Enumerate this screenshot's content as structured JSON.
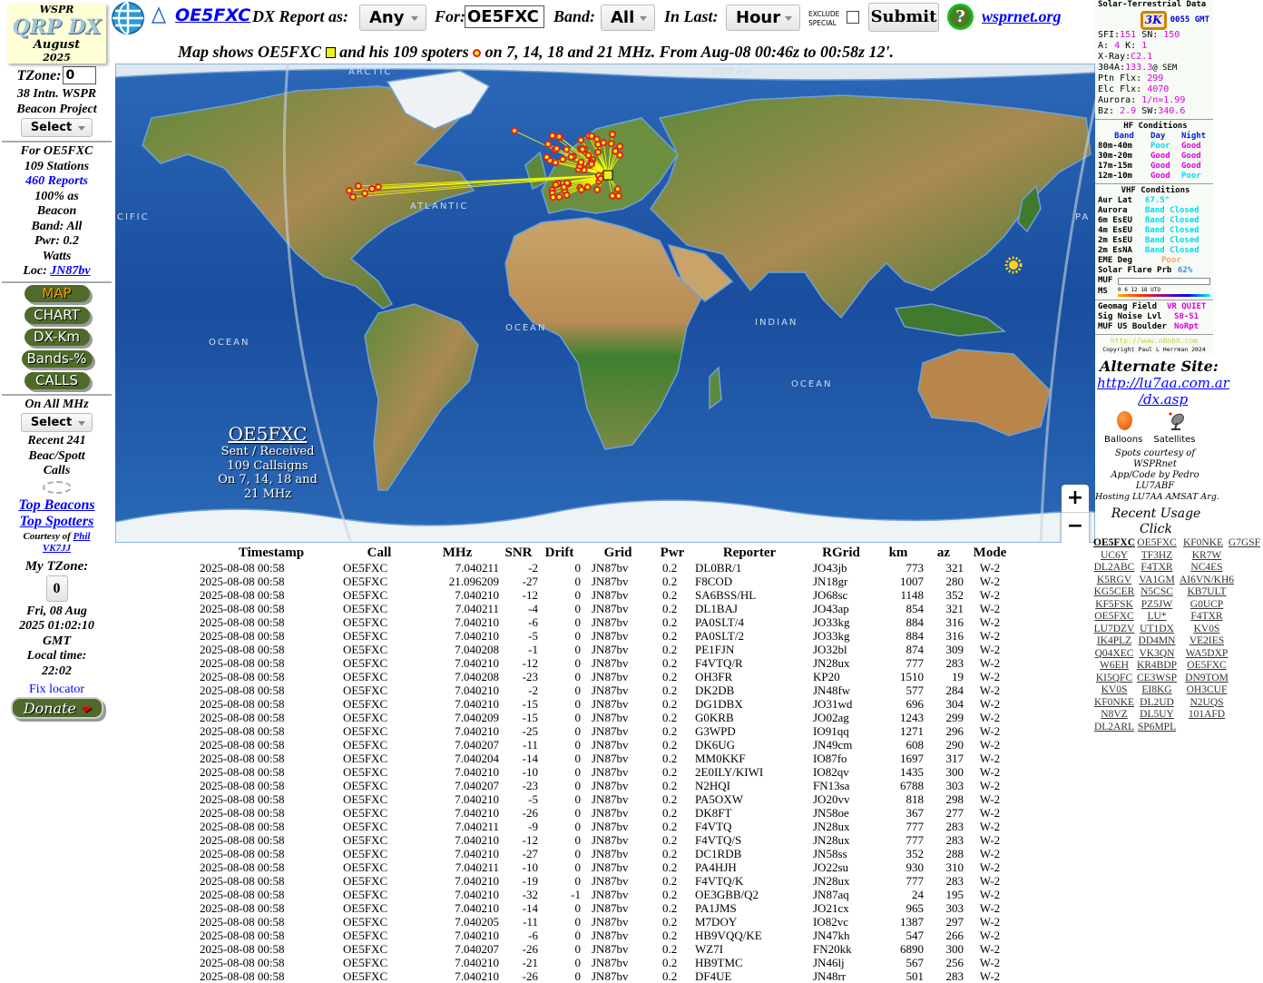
{
  "logo": {
    "top": "WSPR",
    "title": "QRP DX",
    "month": "August",
    "year": "2025"
  },
  "header": {
    "callsign_link": "OE5FXC",
    "report_as_label": "DX Report as:",
    "report_as_value": "Any",
    "for_label": "For:",
    "for_value": "OE5FXC",
    "band_label": "Band:",
    "band_value": "All",
    "in_last_label": "In Last:",
    "in_last_value": "Hour",
    "exclude_label_1": "EXCLUDE",
    "exclude_label_2": "SPECIAL",
    "exclude_checked": false,
    "submit_label": "Submit",
    "help_label": "?",
    "wsprnet_link": "wsprnet.org",
    "subtitle": "Map shows OE5FXC",
    "subtitle_2": "and his 109 spoters",
    "subtitle_3": "on 7, 14, 18 and 21 MHz. From Aug-08 00:46z to 00:58z 12'."
  },
  "sidebar": {
    "tzone_label": "TZone:",
    "tzone_value": "0",
    "project_1": "38 Intn. WSPR",
    "project_2": "Beacon Project",
    "select_label": "Select",
    "stats": {
      "for": "For OE5FXC",
      "stations": "109 Stations",
      "reports": "460 Reports",
      "beacon_1": "100% as",
      "beacon_2": "Beacon",
      "band": "Band: All",
      "pwr": "Pwr: 0.2",
      "watts": "Watts",
      "loc_label": "Loc:",
      "loc_value": "JN87bv"
    },
    "buttons": [
      "MAP",
      "CHART",
      "DX-Km",
      "Bands-%",
      "CALLS"
    ],
    "all_mhz": "On All MHz",
    "select2_label": "Select",
    "recent_1": "Recent 241",
    "recent_2": "Beac/Spott",
    "recent_3": "Calls",
    "top_beacons": "Top Beacons",
    "top_spotters": "Top Spotters",
    "courtesy": "Courtesy of",
    "phil": "Phil",
    "vk7jj": "VK7JJ",
    "my_tzone": "My TZone:",
    "my_tzone_value": "0",
    "date_1": "Fri, 08 Aug",
    "date_2": "2025 01:02:10",
    "date_3": "GMT",
    "local_label": "Local time:",
    "local_time": "22:02",
    "fix_locator": "Fix locator",
    "donate": "Donate"
  },
  "map": {
    "labels": [
      "ARCTIC",
      "OCEAN",
      "ATLANTIC",
      "OCEAN",
      "OCEAN",
      "INDIAN",
      "OCEAN",
      "CIFIC",
      "PA"
    ],
    "overlay": {
      "call": "OE5FXC",
      "line1": "Sent / Received",
      "line2": "109 Callsigns",
      "line3": "On 7, 14, 18 and",
      "line4": "21 MHz"
    },
    "zoom_in": "+",
    "zoom_out": "−",
    "colors": {
      "ocean": "#1d4fa0",
      "spot": "#e02020",
      "path": "#ffff00"
    }
  },
  "solar": {
    "title": "Solar-Terrestrial Data",
    "badge": "3K",
    "time": "0055 GMT",
    "sfi_label": "SFI:",
    "sfi": "151",
    "sn_label": "SN:",
    "sn": "150",
    "a_label": "A:",
    "a": "4",
    "k_label": "K:",
    "k": "1",
    "xray_label": "X-Ray:",
    "xray": "C2.1",
    "a304_label": "304A:",
    "a304": "133.3",
    "a304_suffix": "@ SEM",
    "ptn_label": "Ptn Flx:",
    "ptn": "299",
    "elc_label": "Elc Flx:",
    "elc": "4070",
    "aurora_label": "Aurora:",
    "aurora": "1/n=1.99",
    "bz_label": "Bz:",
    "bz": "2.9",
    "sw_label": "SW:",
    "sw": "340.6",
    "hf_title": "HF Conditions",
    "hf_head": [
      "Band",
      "Day",
      "Night"
    ],
    "hf": [
      [
        "80m-40m",
        "Poor",
        "Good"
      ],
      [
        "30m-20m",
        "Good",
        "Good"
      ],
      [
        "17m-15m",
        "Good",
        "Good"
      ],
      [
        "12m-10m",
        "Good",
        "Poor"
      ]
    ],
    "vhf_title": "VHF Conditions",
    "aur_lat_label": "Aur Lat",
    "aur_lat": "67.5°",
    "vhf": [
      [
        "Aurora",
        "Band Closed"
      ],
      [
        "6m EsEU",
        "Band Closed"
      ],
      [
        "4m EsEU",
        "Band Closed"
      ],
      [
        "2m EsEU",
        "Band Closed"
      ],
      [
        "2m EsNA",
        "Band Closed"
      ]
    ],
    "eme_label": "EME Deg",
    "eme": "Poor",
    "flare_label": "Solar Flare Prb",
    "flare": "62%",
    "muf_label": "MUF",
    "ms_label": "MS",
    "scale": "0  6  12  18 UTO",
    "geomag_label": "Geomag Field",
    "geomag": "VR QUIET",
    "noise_label": "Sig Noise Lvl",
    "noise": "S0-S1",
    "boulder_label": "MUF US Boulder",
    "boulder": "NoRpt",
    "url": "http://www.n0nbh.com",
    "copyright": "Copyright Paul L Herrman 2024"
  },
  "right": {
    "alt_title": "Alternate Site:",
    "alt_link_1": "http://lu7aa.com.ar",
    "alt_link_2": "/dx.asp",
    "balloons": "Balloons",
    "satellites": "Satellites",
    "credit_1": "Spots courtesy of",
    "credit_2": "WSPRnet",
    "credit_3": "App/Code by Pedro",
    "credit_4": "LU7ABF",
    "credit_5": "Hosting LU7AA AMSAT Arg.",
    "recent_1": "Recent Usage",
    "recent_2": "Click",
    "usage": [
      "OE5FXC",
      "OE5FXC",
      "KF0NKE",
      "G7GSF",
      "UC6Y",
      "TF3HZ",
      "KR7W",
      "DL2ABC",
      "F4TXR",
      "NC4ES",
      "K5RGV",
      "VA1GM",
      "AI6VN/KH6",
      "KG5CER",
      "N5CSC",
      "KB7ULT",
      "KF5FSK",
      "PZ5JW",
      "G0UCP",
      "OE5FXC",
      "LU*",
      "F4TXR",
      "LU7DZV",
      "UT1DX",
      "KV0S",
      "IK4PLZ",
      "DD4MN",
      "VE2IES",
      "Q04XEC",
      "VK3QN",
      "WA5DXP",
      "W6EH",
      "KR4BDP",
      "OE5FXC",
      "KI5QFC",
      "CE3WSP",
      "DN9TOM",
      "KV0S",
      "EI8KG",
      "OH3CUF",
      "KF0NKE",
      "DL2UD",
      "N2UQS",
      "N8VZ",
      "DL5UY",
      "101AFD",
      "DL2ARL",
      "SP6MPL"
    ]
  },
  "table": {
    "headers": [
      "Timestamp",
      "Call",
      "MHz",
      "SNR",
      "Drift",
      "Grid",
      "Pwr",
      "Reporter",
      "RGrid",
      "km",
      "az",
      "Mode"
    ],
    "rows": [
      [
        "2025-08-08 00:58",
        "OE5FXC",
        "7.040211",
        "-2",
        "0",
        "JN87bv",
        "0.2",
        "DL0BR/1",
        "JO43jb",
        "773",
        "321",
        "W-2"
      ],
      [
        "2025-08-08 00:58",
        "OE5FXC",
        "21.096209",
        "-27",
        "0",
        "JN87bv",
        "0.2",
        "F8COD",
        "JN18gr",
        "1007",
        "280",
        "W-2"
      ],
      [
        "2025-08-08 00:58",
        "OE5FXC",
        "7.040210",
        "-12",
        "0",
        "JN87bv",
        "0.2",
        "SA6BSS/HL",
        "JO68sc",
        "1148",
        "352",
        "W-2"
      ],
      [
        "2025-08-08 00:58",
        "OE5FXC",
        "7.040211",
        "-4",
        "0",
        "JN87bv",
        "0.2",
        "DL1BAJ",
        "JO43ap",
        "854",
        "321",
        "W-2"
      ],
      [
        "2025-08-08 00:58",
        "OE5FXC",
        "7.040210",
        "-6",
        "0",
        "JN87bv",
        "0.2",
        "PA0SLT/4",
        "JO33kg",
        "884",
        "316",
        "W-2"
      ],
      [
        "2025-08-08 00:58",
        "OE5FXC",
        "7.040210",
        "-5",
        "0",
        "JN87bv",
        "0.2",
        "PA0SLT/2",
        "JO33kg",
        "884",
        "316",
        "W-2"
      ],
      [
        "2025-08-08 00:58",
        "OE5FXC",
        "7.040208",
        "-1",
        "0",
        "JN87bv",
        "0.2",
        "PE1FJN",
        "JO32bl",
        "874",
        "309",
        "W-2"
      ],
      [
        "2025-08-08 00:58",
        "OE5FXC",
        "7.040210",
        "-12",
        "0",
        "JN87bv",
        "0.2",
        "F4VTQ/R",
        "JN28ux",
        "777",
        "283",
        "W-2"
      ],
      [
        "2025-08-08 00:58",
        "OE5FXC",
        "7.040208",
        "-23",
        "0",
        "JN87bv",
        "0.2",
        "OH3FR",
        "KP20",
        "1510",
        "19",
        "W-2"
      ],
      [
        "2025-08-08 00:58",
        "OE5FXC",
        "7.040210",
        "-2",
        "0",
        "JN87bv",
        "0.2",
        "DK2DB",
        "JN48fw",
        "577",
        "284",
        "W-2"
      ],
      [
        "2025-08-08 00:58",
        "OE5FXC",
        "7.040210",
        "-15",
        "0",
        "JN87bv",
        "0.2",
        "DG1DBX",
        "JO31wd",
        "696",
        "304",
        "W-2"
      ],
      [
        "2025-08-08 00:58",
        "OE5FXC",
        "7.040209",
        "-15",
        "0",
        "JN87bv",
        "0.2",
        "G0KRB",
        "JO02ag",
        "1243",
        "299",
        "W-2"
      ],
      [
        "2025-08-08 00:58",
        "OE5FXC",
        "7.040210",
        "-25",
        "0",
        "JN87bv",
        "0.2",
        "G3WPD",
        "IO91qq",
        "1271",
        "296",
        "W-2"
      ],
      [
        "2025-08-08 00:58",
        "OE5FXC",
        "7.040207",
        "-11",
        "0",
        "JN87bv",
        "0.2",
        "DK6UG",
        "JN49cm",
        "608",
        "290",
        "W-2"
      ],
      [
        "2025-08-08 00:58",
        "OE5FXC",
        "7.040204",
        "-14",
        "0",
        "JN87bv",
        "0.2",
        "MM0KKF",
        "IO87fo",
        "1697",
        "317",
        "W-2"
      ],
      [
        "2025-08-08 00:58",
        "OE5FXC",
        "7.040210",
        "-10",
        "0",
        "JN87bv",
        "0.2",
        "2E0ILY/KIWI",
        "IO82qv",
        "1435",
        "300",
        "W-2"
      ],
      [
        "2025-08-08 00:58",
        "OE5FXC",
        "7.040207",
        "-23",
        "0",
        "JN87bv",
        "0.2",
        "N2HQI",
        "FN13sa",
        "6788",
        "303",
        "W-2"
      ],
      [
        "2025-08-08 00:58",
        "OE5FXC",
        "7.040210",
        "-5",
        "0",
        "JN87bv",
        "0.2",
        "PA5OXW",
        "JO20vv",
        "818",
        "298",
        "W-2"
      ],
      [
        "2025-08-08 00:58",
        "OE5FXC",
        "7.040210",
        "-26",
        "0",
        "JN87bv",
        "0.2",
        "DK8FT",
        "JN58oe",
        "367",
        "277",
        "W-2"
      ],
      [
        "2025-08-08 00:58",
        "OE5FXC",
        "7.040211",
        "-9",
        "0",
        "JN87bv",
        "0.2",
        "F4VTQ",
        "JN28ux",
        "777",
        "283",
        "W-2"
      ],
      [
        "2025-08-08 00:58",
        "OE5FXC",
        "7.040210",
        "-12",
        "0",
        "JN87bv",
        "0.2",
        "F4VTQ/S",
        "JN28ux",
        "777",
        "283",
        "W-2"
      ],
      [
        "2025-08-08 00:58",
        "OE5FXC",
        "7.040210",
        "-27",
        "0",
        "JN87bv",
        "0.2",
        "DC1RDB",
        "JN58ss",
        "352",
        "288",
        "W-2"
      ],
      [
        "2025-08-08 00:58",
        "OE5FXC",
        "7.040211",
        "-10",
        "0",
        "JN87bv",
        "0.2",
        "PA4HJH",
        "JO22su",
        "930",
        "310",
        "W-2"
      ],
      [
        "2025-08-08 00:58",
        "OE5FXC",
        "7.040210",
        "-19",
        "0",
        "JN87bv",
        "0.2",
        "F4VTQ/K",
        "JN28ux",
        "777",
        "283",
        "W-2"
      ],
      [
        "2025-08-08 00:58",
        "OE5FXC",
        "7.040210",
        "-32",
        "-1",
        "JN87bv",
        "0.2",
        "OE3GBB/Q2",
        "JN87aq",
        "24",
        "195",
        "W-2"
      ],
      [
        "2025-08-08 00:58",
        "OE5FXC",
        "7.040210",
        "-14",
        "0",
        "JN87bv",
        "0.2",
        "PA1JMS",
        "JO21cx",
        "965",
        "303",
        "W-2"
      ],
      [
        "2025-08-08 00:58",
        "OE5FXC",
        "7.040205",
        "-11",
        "0",
        "JN87bv",
        "0.2",
        "M7DOY",
        "IO82vc",
        "1387",
        "297",
        "W-2"
      ],
      [
        "2025-08-08 00:58",
        "OE5FXC",
        "7.040210",
        "-6",
        "0",
        "JN87bv",
        "0.2",
        "HB9VQQ/KE",
        "JN47kh",
        "547",
        "266",
        "W-2"
      ],
      [
        "2025-08-08 00:58",
        "OE5FXC",
        "7.040207",
        "-26",
        "0",
        "JN87bv",
        "0.2",
        "WZ7I",
        "FN20kk",
        "6890",
        "300",
        "W-2"
      ],
      [
        "2025-08-08 00:58",
        "OE5FXC",
        "7.040210",
        "-21",
        "0",
        "JN87bv",
        "0.2",
        "HB9TMC",
        "JN46lj",
        "567",
        "256",
        "W-2"
      ],
      [
        "2025-08-08 00:58",
        "OE5FXC",
        "7.040210",
        "-26",
        "0",
        "JN87bv",
        "0.2",
        "DF4UE",
        "JN48rr",
        "501",
        "283",
        "W-2"
      ]
    ]
  }
}
